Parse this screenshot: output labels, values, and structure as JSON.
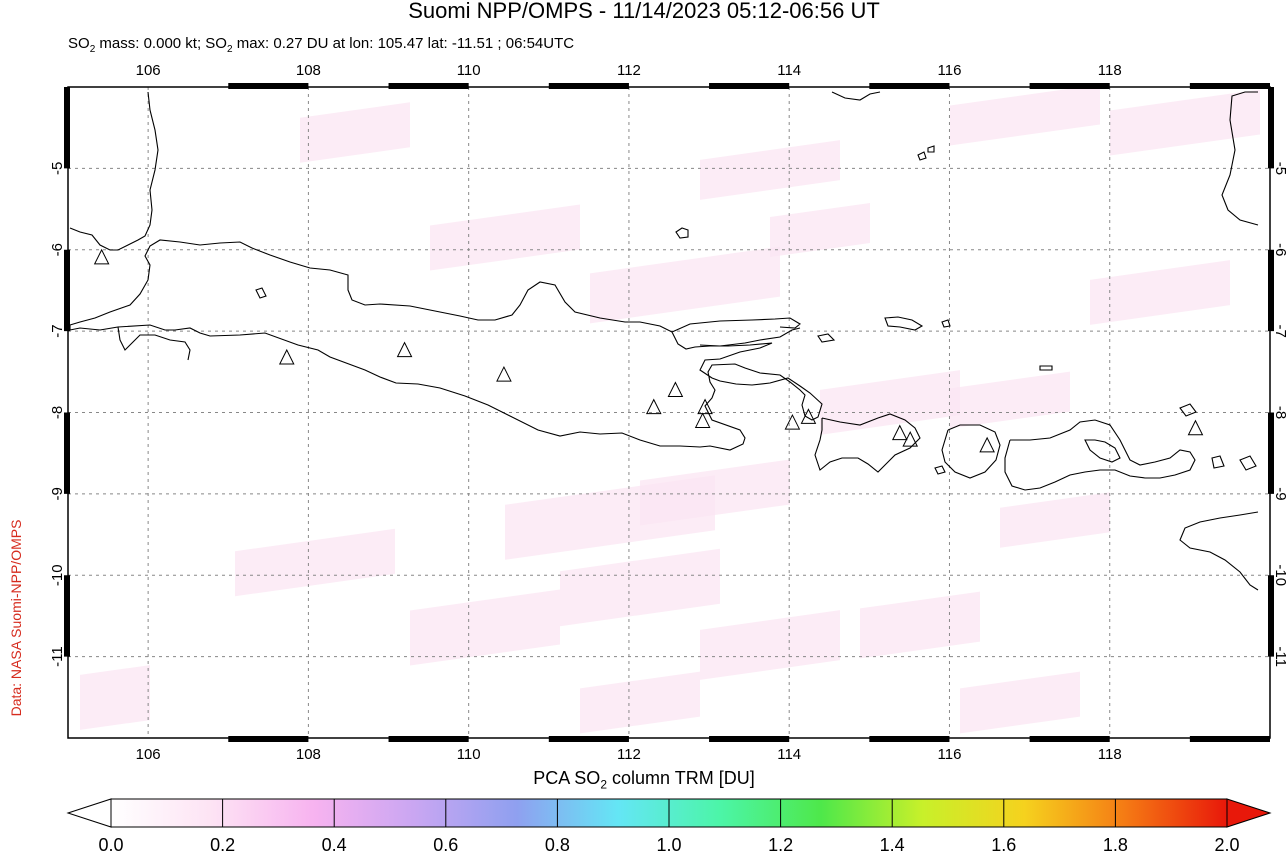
{
  "title": "Suomi NPP/OMPS - 11/14/2023 05:12-06:56 UT",
  "subtitle": {
    "prefix": "SO",
    "sub": "2",
    "mid": " mass: 0.000 kt; SO",
    "sub2": "2",
    "rest": " max: 0.27 DU at lon: 105.47 lat: -11.51 ; 06:54UTC"
  },
  "side_credit": "Data: NASA Suomi-NPP/OMPS",
  "map": {
    "lon_range": [
      105,
      120
    ],
    "lat_range": [
      -12,
      -4
    ],
    "lon_ticks": [
      "106",
      "108",
      "110",
      "112",
      "114",
      "116",
      "118"
    ],
    "lat_ticks": [
      "-5",
      "-6",
      "-7",
      "-8",
      "-9",
      "-10",
      "-11"
    ],
    "grid": "dashed",
    "volcanoes": [
      {
        "lon": 105.42,
        "lat": -6.1
      },
      {
        "lon": 107.73,
        "lat": -7.33
      },
      {
        "lon": 109.2,
        "lat": -7.24
      },
      {
        "lon": 110.44,
        "lat": -7.54
      },
      {
        "lon": 112.31,
        "lat": -7.94
      },
      {
        "lon": 112.58,
        "lat": -7.73
      },
      {
        "lon": 112.95,
        "lat": -7.94
      },
      {
        "lon": 112.92,
        "lat": -8.11
      },
      {
        "lon": 114.04,
        "lat": -8.13
      },
      {
        "lon": 114.24,
        "lat": -8.06
      },
      {
        "lon": 115.38,
        "lat": -8.26
      },
      {
        "lon": 115.51,
        "lat": -8.34
      },
      {
        "lon": 116.47,
        "lat": -8.41
      },
      {
        "lon": 119.07,
        "lat": -8.2
      }
    ]
  },
  "colorbar": {
    "title_prefix": "PCA SO",
    "title_sub": "2",
    "title_suffix": " column TRM [DU]",
    "ticks": [
      "0.0",
      "0.2",
      "0.4",
      "0.6",
      "0.8",
      "1.0",
      "1.2",
      "1.4",
      "1.6",
      "1.8",
      "2.0"
    ],
    "range": [
      0,
      2
    ],
    "colors": [
      "#ffffff",
      "#fde3f4",
      "#f7b3f0",
      "#c9a6f2",
      "#8fa0f0",
      "#64e6f5",
      "#4cf5a8",
      "#4ee84a",
      "#c8f02a",
      "#f5d21e",
      "#f57a14",
      "#e8180a"
    ]
  },
  "chart_data": {
    "type": "heatmap",
    "title": "Suomi NPP/OMPS - 11/14/2023 05:12-06:56 UT",
    "xlim": [
      105,
      120
    ],
    "ylim": [
      -12,
      -4
    ],
    "value_range": [
      0,
      2
    ],
    "max_value": 0.27,
    "max_location": {
      "lon": 105.47,
      "lat": -11.51
    }
  }
}
